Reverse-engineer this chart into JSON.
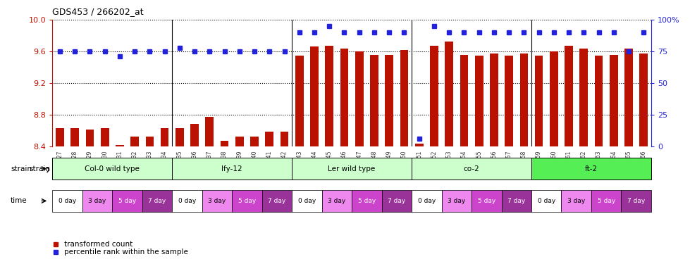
{
  "title": "GDS453 / 266202_at",
  "samples": [
    "GSM8827",
    "GSM8828",
    "GSM8829",
    "GSM8830",
    "GSM8831",
    "GSM8832",
    "GSM8833",
    "GSM8834",
    "GSM8835",
    "GSM8836",
    "GSM8837",
    "GSM8838",
    "GSM8839",
    "GSM8840",
    "GSM8841",
    "GSM8842",
    "GSM8843",
    "GSM8844",
    "GSM8845",
    "GSM8846",
    "GSM8847",
    "GSM8848",
    "GSM8849",
    "GSM8850",
    "GSM8851",
    "GSM8852",
    "GSM8853",
    "GSM8854",
    "GSM8855",
    "GSM8856",
    "GSM8857",
    "GSM8858",
    "GSM8859",
    "GSM8860",
    "GSM8861",
    "GSM8862",
    "GSM8863",
    "GSM8864",
    "GSM8865",
    "GSM8866"
  ],
  "bar_values": [
    8.63,
    8.63,
    8.61,
    8.63,
    8.41,
    8.52,
    8.52,
    8.63,
    8.63,
    8.68,
    8.77,
    8.47,
    8.52,
    8.52,
    8.58,
    8.58,
    9.55,
    9.66,
    9.67,
    9.64,
    9.6,
    9.56,
    9.56,
    9.62,
    8.43,
    9.67,
    9.73,
    9.56,
    9.55,
    9.57,
    9.55,
    9.57,
    9.55,
    9.6,
    9.67,
    9.64,
    9.55,
    9.56,
    9.64,
    9.57
  ],
  "percentile_values": [
    75,
    75,
    75,
    75,
    71,
    75,
    75,
    75,
    78,
    75,
    75,
    75,
    75,
    75,
    75,
    75,
    90,
    90,
    95,
    90,
    90,
    90,
    90,
    90,
    6,
    95,
    90,
    90,
    90,
    90,
    90,
    90,
    90,
    90,
    90,
    90,
    90,
    90,
    75,
    90
  ],
  "strain_groups": [
    {
      "label": "Col-0 wild type",
      "start": 0,
      "end": 8,
      "color": "#ccffcc"
    },
    {
      "label": "lfy-12",
      "start": 8,
      "end": 16,
      "color": "#ccffcc"
    },
    {
      "label": "Ler wild type",
      "start": 16,
      "end": 24,
      "color": "#ccffcc"
    },
    {
      "label": "co-2",
      "start": 24,
      "end": 32,
      "color": "#ccffcc"
    },
    {
      "label": "ft-2",
      "start": 32,
      "end": 40,
      "color": "#55ee55"
    }
  ],
  "time_labels": [
    "0 day",
    "3 day",
    "5 day",
    "7 day"
  ],
  "time_colors": [
    "#ffffff",
    "#ee88ee",
    "#cc44cc",
    "#993399"
  ],
  "time_text_colors": [
    "black",
    "black",
    "white",
    "white"
  ],
  "bar_color": "#bb1100",
  "percentile_color": "#2222dd",
  "ylim_left": [
    8.4,
    10.0
  ],
  "ylim_right": [
    0,
    100
  ],
  "yticks_left": [
    8.4,
    8.8,
    9.2,
    9.6,
    10.0
  ],
  "yticks_right": [
    0,
    25,
    50,
    75,
    100
  ],
  "n_samples": 40
}
